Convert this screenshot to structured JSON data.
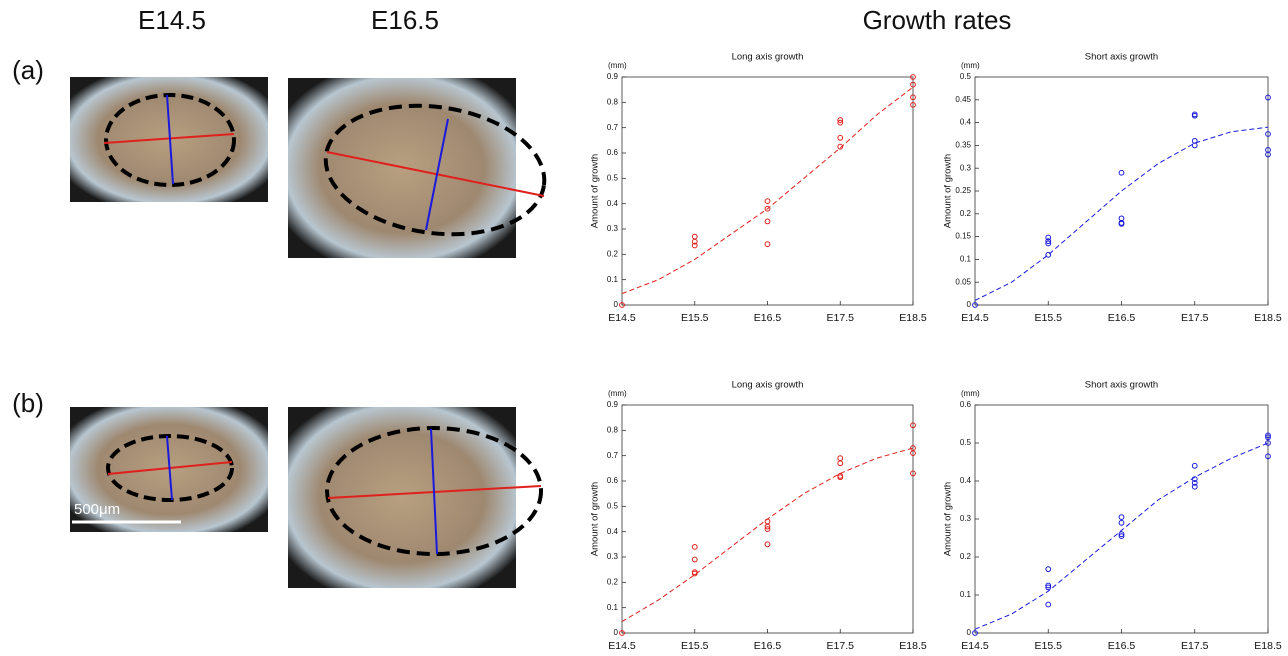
{
  "column_headers": [
    "E14.5",
    "E16.5",
    "Growth rates"
  ],
  "panels": [
    "(a)",
    "(b)"
  ],
  "scale_bar": "500μm",
  "chart_data": [
    {
      "type": "scatter",
      "title": "Long axis growth",
      "y_label": "Amount of growth",
      "y_unit": "(mm)",
      "xlim": [
        14.5,
        18.5
      ],
      "xticks": [
        {
          "value": 14.5,
          "label": "E14.5"
        },
        {
          "value": 15.5,
          "label": "E15.5"
        },
        {
          "value": 16.5,
          "label": "E16.5"
        },
        {
          "value": 17.5,
          "label": "E17.5"
        },
        {
          "value": 18.5,
          "label": "E18.5"
        }
      ],
      "ylim": [
        0,
        0.9
      ],
      "yticks": [
        0,
        0.1,
        0.2,
        0.3,
        0.4,
        0.5,
        0.6,
        0.7,
        0.8,
        0.9
      ],
      "series": [
        {
          "type": "scatter",
          "color": "#e0201c",
          "x": [
            14.5,
            15.5,
            15.5,
            15.5,
            16.5,
            16.5,
            16.5,
            16.5,
            17.5,
            17.5,
            17.5,
            17.5,
            18.5,
            18.5,
            18.5,
            18.5
          ],
          "values": [
            0,
            0.27,
            0.25,
            0.235,
            0.41,
            0.38,
            0.33,
            0.24,
            0.73,
            0.72,
            0.66,
            0.625,
            0.9,
            0.87,
            0.82,
            0.79
          ]
        },
        {
          "type": "line",
          "dashed": true,
          "color": "#e0201c",
          "x": [
            14.5,
            15,
            15.5,
            16,
            16.5,
            17,
            17.5,
            18,
            18.5
          ],
          "values": [
            0.045,
            0.1,
            0.18,
            0.28,
            0.38,
            0.5,
            0.62,
            0.75,
            0.86
          ]
        }
      ]
    },
    {
      "type": "scatter",
      "title": "Short axis growth",
      "y_label": "Amount of growth",
      "y_unit": "(mm)",
      "xlim": [
        14.5,
        18.5
      ],
      "xticks": [
        {
          "value": 14.5,
          "label": "E14.5"
        },
        {
          "value": 15.5,
          "label": "E15.5"
        },
        {
          "value": 16.5,
          "label": "E16.5"
        },
        {
          "value": 17.5,
          "label": "E17.5"
        },
        {
          "value": 18.5,
          "label": "E18.5"
        }
      ],
      "ylim": [
        0,
        0.5
      ],
      "yticks": [
        0,
        0.05,
        0.1,
        0.15,
        0.2,
        0.25,
        0.3,
        0.35,
        0.4,
        0.45,
        0.5
      ],
      "series": [
        {
          "type": "scatter",
          "color": "#1a1adc",
          "x": [
            14.5,
            15.5,
            15.5,
            15.5,
            15.5,
            16.5,
            16.5,
            16.5,
            16.5,
            17.5,
            17.5,
            17.5,
            17.5,
            18.5,
            18.5,
            18.5,
            18.5
          ],
          "values": [
            0,
            0.148,
            0.14,
            0.135,
            0.11,
            0.29,
            0.19,
            0.18,
            0.178,
            0.418,
            0.415,
            0.36,
            0.35,
            0.455,
            0.375,
            0.34,
            0.33
          ]
        },
        {
          "type": "line",
          "dashed": true,
          "color": "#1a1adc",
          "x": [
            14.5,
            15,
            15.5,
            16,
            16.5,
            17,
            17.5,
            18,
            18.5
          ],
          "values": [
            0.01,
            0.05,
            0.11,
            0.18,
            0.25,
            0.31,
            0.355,
            0.38,
            0.39
          ]
        }
      ]
    },
    {
      "type": "scatter",
      "title": "Long axis growth",
      "y_label": "Amount of growth",
      "y_unit": "(mm)",
      "xlim": [
        14.5,
        18.5
      ],
      "xticks": [
        {
          "value": 14.5,
          "label": "E14.5"
        },
        {
          "value": 15.5,
          "label": "E15.5"
        },
        {
          "value": 16.5,
          "label": "E16.5"
        },
        {
          "value": 17.5,
          "label": "E17.5"
        },
        {
          "value": 18.5,
          "label": "E18.5"
        }
      ],
      "ylim": [
        0,
        0.9
      ],
      "yticks": [
        0,
        0.1,
        0.2,
        0.3,
        0.4,
        0.5,
        0.6,
        0.7,
        0.8,
        0.9
      ],
      "series": [
        {
          "type": "scatter",
          "color": "#e0201c",
          "x": [
            14.5,
            15.5,
            15.5,
            15.5,
            15.5,
            16.5,
            16.5,
            16.5,
            16.5,
            17.5,
            17.5,
            17.5,
            17.5,
            18.5,
            18.5,
            18.5,
            18.5
          ],
          "values": [
            0,
            0.34,
            0.29,
            0.24,
            0.235,
            0.44,
            0.42,
            0.41,
            0.35,
            0.69,
            0.67,
            0.62,
            0.615,
            0.82,
            0.73,
            0.71,
            0.63
          ]
        },
        {
          "type": "line",
          "dashed": true,
          "color": "#e0201c",
          "x": [
            14.5,
            15,
            15.5,
            16,
            16.5,
            17,
            17.5,
            18,
            18.5
          ],
          "values": [
            0.045,
            0.13,
            0.23,
            0.34,
            0.45,
            0.55,
            0.63,
            0.69,
            0.73
          ]
        }
      ]
    },
    {
      "type": "scatter",
      "title": "Short axis growth",
      "y_label": "Amount of growth",
      "y_unit": "(mm)",
      "xlim": [
        14.5,
        18.5
      ],
      "xticks": [
        {
          "value": 14.5,
          "label": "E14.5"
        },
        {
          "value": 15.5,
          "label": "E15.5"
        },
        {
          "value": 16.5,
          "label": "E16.5"
        },
        {
          "value": 17.5,
          "label": "E17.5"
        },
        {
          "value": 18.5,
          "label": "E18.5"
        }
      ],
      "ylim": [
        0,
        0.6
      ],
      "yticks": [
        0,
        0.1,
        0.2,
        0.3,
        0.4,
        0.5,
        0.6
      ],
      "series": [
        {
          "type": "scatter",
          "color": "#1a1adc",
          "x": [
            14.5,
            15.5,
            15.5,
            15.5,
            15.5,
            16.5,
            16.5,
            16.5,
            16.5,
            17.5,
            17.5,
            17.5,
            17.5,
            18.5,
            18.5,
            18.5,
            18.5
          ],
          "values": [
            0,
            0.168,
            0.125,
            0.12,
            0.075,
            0.305,
            0.29,
            0.26,
            0.255,
            0.44,
            0.405,
            0.395,
            0.385,
            0.52,
            0.515,
            0.5,
            0.465
          ]
        },
        {
          "type": "line",
          "dashed": true,
          "color": "#1a1adc",
          "x": [
            14.5,
            15,
            15.5,
            16,
            16.5,
            17,
            17.5,
            18,
            18.5
          ],
          "values": [
            0.01,
            0.05,
            0.11,
            0.19,
            0.27,
            0.35,
            0.41,
            0.46,
            0.5
          ]
        }
      ]
    }
  ]
}
